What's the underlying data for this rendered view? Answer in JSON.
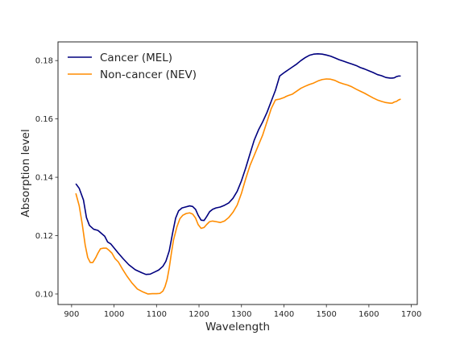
{
  "chart_data": {
    "type": "line",
    "title": "",
    "xlabel": "Wavelength",
    "ylabel": "Absorption level",
    "xlim": [
      868,
      1714
    ],
    "ylim": [
      0.0964,
      0.1864
    ],
    "xticks": [
      900,
      1000,
      1100,
      1200,
      1300,
      1400,
      1500,
      1600,
      1700
    ],
    "yticks": [
      0.1,
      0.12,
      0.14,
      0.16,
      0.18
    ],
    "ytick_labels": [
      "0.10",
      "0.12",
      "0.14",
      "0.16",
      "0.18"
    ],
    "grid": false,
    "legend_position": "top-left",
    "series": [
      {
        "name": "Cancer (MEL)",
        "color": "#00007f",
        "x": [
          910,
          918,
          928,
          935,
          942,
          952,
          962,
          970,
          978,
          985,
          992,
          1000,
          1010,
          1022,
          1035,
          1050,
          1065,
          1075,
          1085,
          1095,
          1105,
          1115,
          1122,
          1130,
          1138,
          1145,
          1152,
          1160,
          1168,
          1178,
          1185,
          1192,
          1198,
          1205,
          1212,
          1218,
          1225,
          1232,
          1240,
          1250,
          1260,
          1270,
          1280,
          1290,
          1300,
          1310,
          1320,
          1330,
          1340,
          1350,
          1360,
          1370,
          1380,
          1390,
          1400,
          1405,
          1410,
          1420,
          1430,
          1440,
          1450,
          1460,
          1470,
          1480,
          1490,
          1500,
          1510,
          1520,
          1530,
          1540,
          1550,
          1560,
          1570,
          1580,
          1590,
          1600,
          1610,
          1620,
          1630,
          1640,
          1650,
          1655,
          1660,
          1665,
          1670,
          1675
        ],
        "y": [
          0.1378,
          0.1362,
          0.1322,
          0.1262,
          0.1235,
          0.1222,
          0.1218,
          0.1208,
          0.1198,
          0.1178,
          0.1172,
          0.1158,
          0.114,
          0.112,
          0.11,
          0.1083,
          0.1073,
          0.1067,
          0.1068,
          0.1075,
          0.1082,
          0.1095,
          0.1112,
          0.1148,
          0.121,
          0.126,
          0.1285,
          0.1295,
          0.1298,
          0.1302,
          0.13,
          0.129,
          0.127,
          0.1253,
          0.1252,
          0.1265,
          0.1282,
          0.129,
          0.1295,
          0.1298,
          0.1304,
          0.1312,
          0.1328,
          0.1352,
          0.1388,
          0.1432,
          0.148,
          0.1527,
          0.1562,
          0.159,
          0.1622,
          0.166,
          0.1698,
          0.1747,
          0.1758,
          0.1763,
          0.1768,
          0.1778,
          0.1788,
          0.18,
          0.181,
          0.1818,
          0.1822,
          0.1823,
          0.1822,
          0.1819,
          0.1815,
          0.1809,
          0.1803,
          0.1798,
          0.1793,
          0.1788,
          0.1783,
          0.1776,
          0.1771,
          0.1765,
          0.1759,
          0.1752,
          0.1748,
          0.1742,
          0.174,
          0.174,
          0.1741,
          0.1745,
          0.1747,
          0.1747
        ]
      },
      {
        "name": "Non-cancer (NEV)",
        "color": "#ff8c00",
        "x": [
          910,
          918,
          925,
          932,
          938,
          944,
          950,
          957,
          962,
          968,
          975,
          982,
          988,
          995,
          1002,
          1010,
          1020,
          1030,
          1042,
          1055,
          1068,
          1080,
          1090,
          1100,
          1108,
          1115,
          1120,
          1125,
          1130,
          1135,
          1140,
          1148,
          1155,
          1162,
          1170,
          1178,
          1185,
          1192,
          1198,
          1205,
          1212,
          1218,
          1225,
          1232,
          1240,
          1250,
          1260,
          1270,
          1280,
          1290,
          1300,
          1310,
          1320,
          1330,
          1340,
          1350,
          1360,
          1370,
          1380,
          1390,
          1400,
          1405,
          1410,
          1420,
          1430,
          1440,
          1450,
          1460,
          1470,
          1480,
          1490,
          1500,
          1510,
          1520,
          1530,
          1540,
          1550,
          1560,
          1570,
          1580,
          1590,
          1600,
          1610,
          1620,
          1630,
          1640,
          1650,
          1655,
          1660,
          1665,
          1670,
          1675
        ],
        "y": [
          0.1345,
          0.1302,
          0.124,
          0.1168,
          0.1125,
          0.1108,
          0.1108,
          0.1125,
          0.114,
          0.1155,
          0.1157,
          0.1157,
          0.115,
          0.114,
          0.1122,
          0.111,
          0.1085,
          0.1062,
          0.1038,
          0.1017,
          0.1007,
          0.1,
          0.1001,
          0.1001,
          0.1002,
          0.101,
          0.1025,
          0.105,
          0.109,
          0.114,
          0.1185,
          0.123,
          0.1258,
          0.127,
          0.1276,
          0.1278,
          0.1274,
          0.126,
          0.1238,
          0.1225,
          0.1228,
          0.1238,
          0.1248,
          0.125,
          0.1248,
          0.1245,
          0.125,
          0.1262,
          0.128,
          0.1305,
          0.1345,
          0.1395,
          0.144,
          0.1475,
          0.151,
          0.1545,
          0.159,
          0.1635,
          0.1665,
          0.1668,
          0.1673,
          0.1677,
          0.168,
          0.1685,
          0.1695,
          0.1705,
          0.1712,
          0.1718,
          0.1723,
          0.173,
          0.1735,
          0.1737,
          0.1736,
          0.1732,
          0.1725,
          0.172,
          0.1716,
          0.171,
          0.1702,
          0.1695,
          0.1688,
          0.168,
          0.1672,
          0.1665,
          0.166,
          0.1656,
          0.1654,
          0.1654,
          0.1658,
          0.166,
          0.1665,
          0.1668
        ]
      }
    ]
  }
}
